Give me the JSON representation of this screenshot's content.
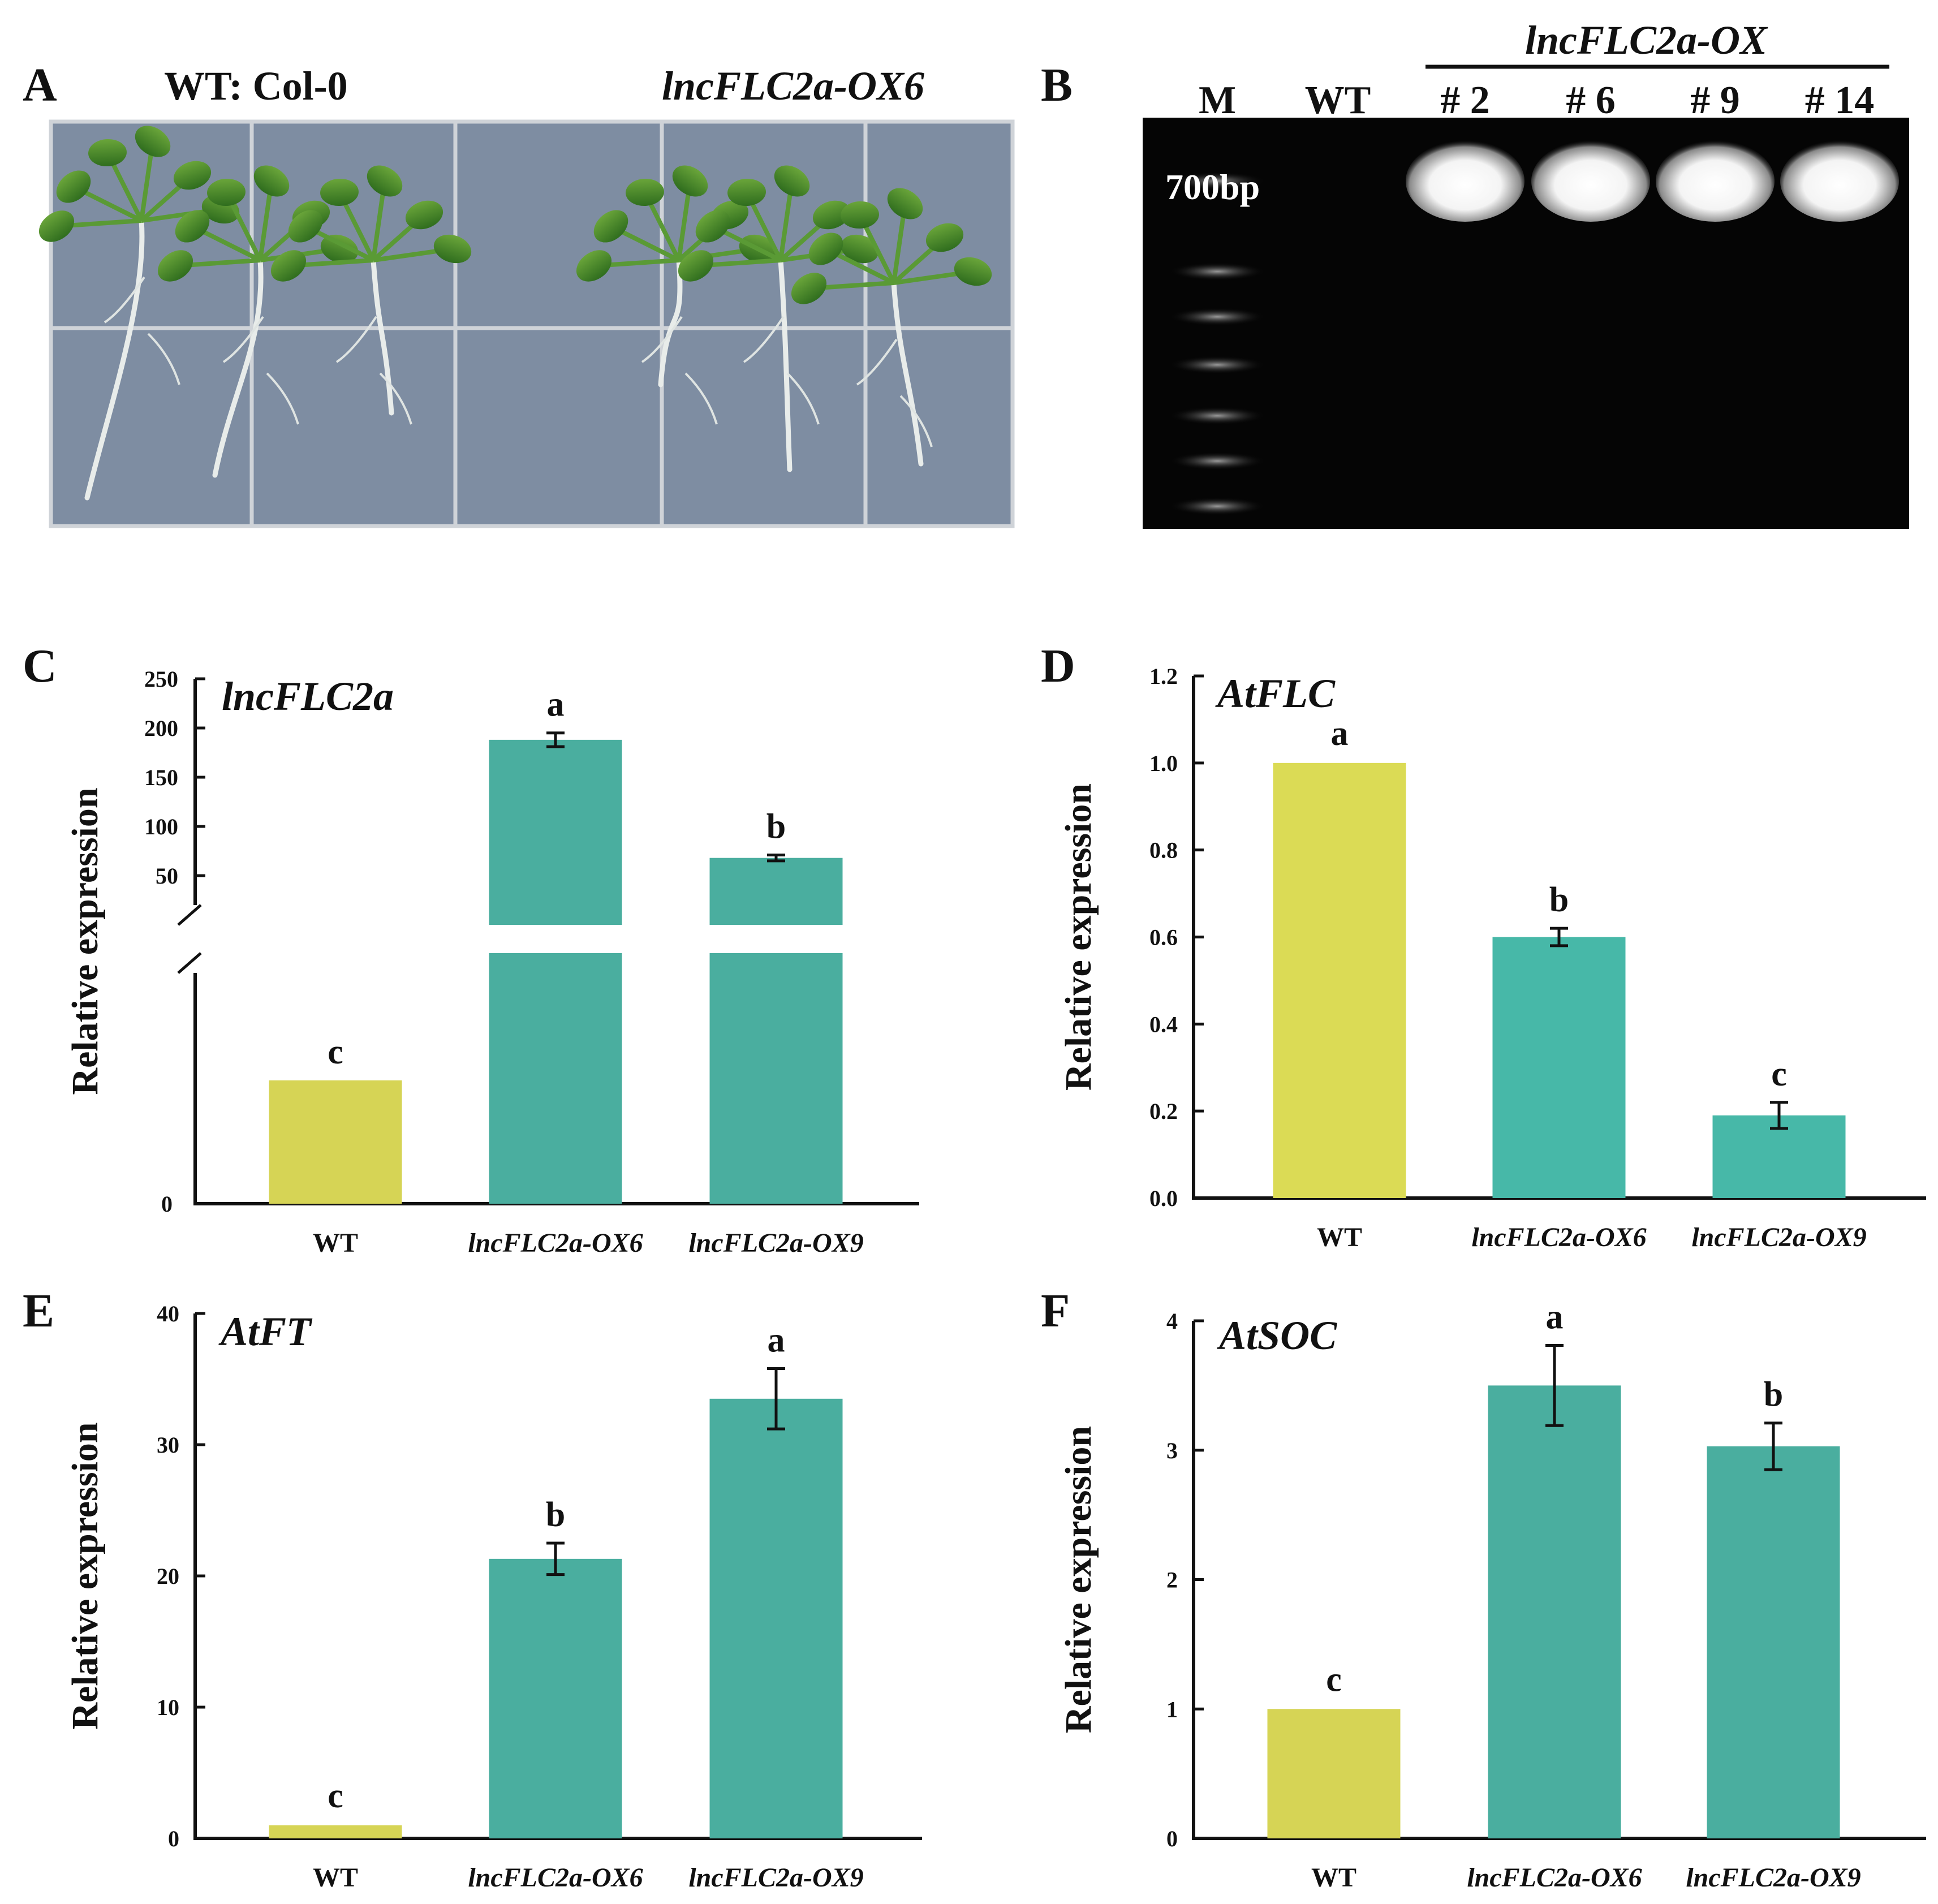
{
  "panel_a": {
    "letter": "A",
    "label_wt": "WT: Col-0",
    "label_ox": "lncFLC2a-OX6"
  },
  "panel_b": {
    "letter": "B",
    "group_label": "lncFLC2a-OX",
    "lanes": [
      "M",
      "WT",
      "# 2",
      "# 6",
      "# 9",
      "# 14"
    ],
    "size_label": "700bp"
  },
  "colors": {
    "wt_bar": "#d6d455",
    "wt_bar_d": "#dbdb55",
    "ox_bar": "#4aae9f",
    "ox_bar_d": "#47b8a8",
    "plate_bg": "#7d8ca2",
    "gel_bg": "#050505"
  },
  "chart_data": [
    {
      "panel": "C",
      "type": "bar",
      "title": "lncFLC2a",
      "ylabel": "Relative expression",
      "categories": [
        "WT",
        "lncFLC2a-OX6",
        "lncFLC2a-OX9"
      ],
      "values": [
        1,
        188,
        68
      ],
      "errors": [
        0,
        7,
        3
      ],
      "significance": [
        "c",
        "a",
        "b"
      ],
      "axis_break": true,
      "yticks_upper": [
        50,
        100,
        150,
        200,
        250
      ],
      "ytick_zero": 0,
      "ylim_upper": [
        0,
        250
      ]
    },
    {
      "panel": "D",
      "type": "bar",
      "title": "AtFLC",
      "ylabel": "Relative expression",
      "categories": [
        "WT",
        "lncFLC2a-OX6",
        "lncFLC2a-OX9"
      ],
      "values": [
        1.0,
        0.6,
        0.19
      ],
      "errors": [
        0,
        0.02,
        0.03
      ],
      "significance": [
        "a",
        "b",
        "c"
      ],
      "ytick_labels": [
        "0.0",
        "0.2",
        "0.4",
        "0.6",
        "0.8",
        "1.0",
        "1.2"
      ],
      "ylim": [
        0,
        1.2
      ]
    },
    {
      "panel": "E",
      "type": "bar",
      "title": "AtFT",
      "ylabel": "Relative expression",
      "categories": [
        "WT",
        "lncFLC2a-OX6",
        "lncFLC2a-OX9"
      ],
      "values": [
        1,
        21.3,
        33.5
      ],
      "errors": [
        0,
        1.2,
        2.3
      ],
      "significance": [
        "c",
        "b",
        "a"
      ],
      "ytick_labels": [
        "0",
        "10",
        "20",
        "30",
        "40"
      ],
      "ylim": [
        0,
        40
      ]
    },
    {
      "panel": "F",
      "type": "bar",
      "title": "AtSOC",
      "ylabel": "Relative expression",
      "categories": [
        "WT",
        "lncFLC2a-OX6",
        "lncFLC2a-OX9"
      ],
      "values": [
        1.0,
        3.5,
        3.03
      ],
      "errors": [
        0,
        0.31,
        0.18
      ],
      "significance": [
        "c",
        "a",
        "b"
      ],
      "ytick_labels": [
        "0",
        "1",
        "2",
        "3",
        "4"
      ],
      "ylim": [
        0,
        4
      ]
    }
  ]
}
